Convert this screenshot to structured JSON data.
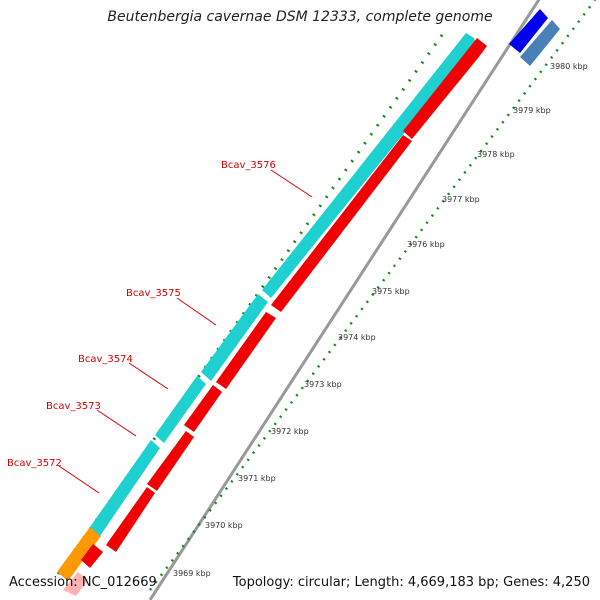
{
  "title": "Beutenbergia cavernae DSM 12333, complete genome",
  "accession": "Accession: NC_012669",
  "topology": "Topology: circular; Length: 4,669,183 bp; Genes: 4,250",
  "scale_labels": [
    "3969 kbp",
    "3970 kbp",
    "3971 kbp",
    "3972 kbp",
    "3973 kbp",
    "3974 kbp",
    "3975 kbp",
    "3976 kbp",
    "3977 kbp",
    "3978 kbp",
    "3979 kbp",
    "3980 kbp"
  ],
  "gene_labels": [
    "Bcav_3572",
    "Bcav_3573",
    "Bcav_3574",
    "Bcav_3575",
    "Bcav_3576"
  ],
  "colors": {
    "cds": "#f00000",
    "gene": "#1fd0d0",
    "backbone": "#999999",
    "tick_green": "#1a8a1a",
    "label_red": "#d40000",
    "orange": "#ff9900",
    "blue": "#0000ee",
    "steel_blue": "#4a80b8"
  }
}
